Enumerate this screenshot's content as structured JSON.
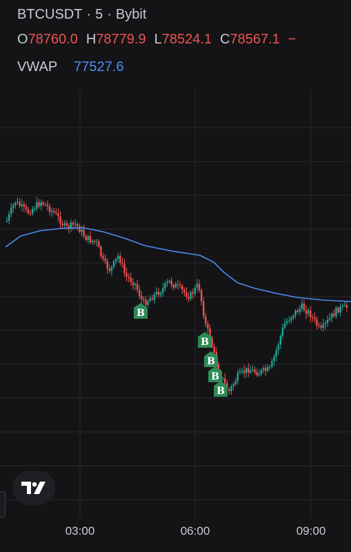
{
  "header": {
    "symbol": "BTCUSDT",
    "interval": "5",
    "exchange": "Bybit",
    "separator": "·"
  },
  "ohlc": {
    "open_label": "O",
    "open_value": "78760.0",
    "high_label": "H",
    "high_value": "78779.9",
    "low_label": "L",
    "low_value": "78524.1",
    "close_label": "C",
    "close_value": "78567.1",
    "change_value": "−"
  },
  "indicator": {
    "name": "VWAP",
    "value": "77527.6",
    "color": "#4d8ef5"
  },
  "colors": {
    "up": "#26a69a",
    "down": "#ef5350",
    "background": "#141416",
    "grid": "#2a2a30",
    "buy_marker": "#2e8b57"
  },
  "time_axis": {
    "labels": [
      "03:00",
      "06:00",
      "09:00"
    ]
  },
  "markers": {
    "buy_label": "B",
    "count": 5
  },
  "logo": {
    "icon": "tradingview-logo-icon"
  }
}
